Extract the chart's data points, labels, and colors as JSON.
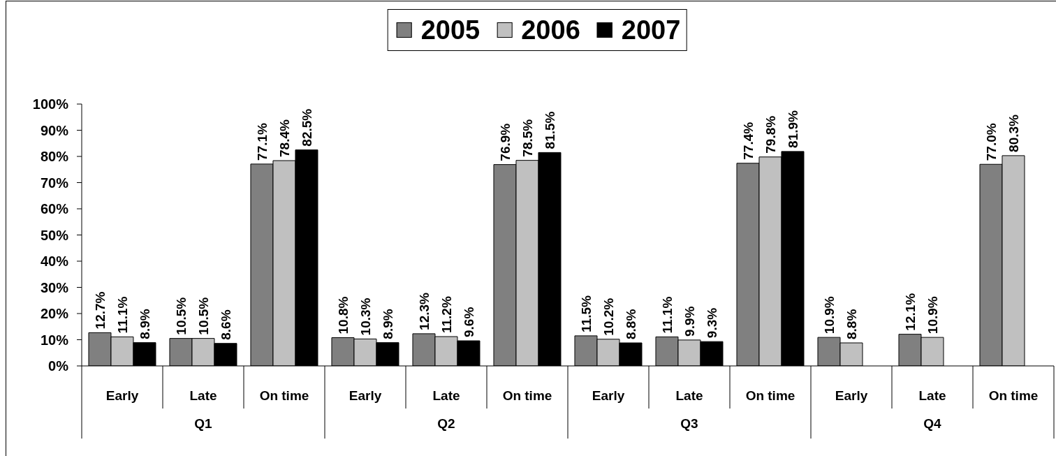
{
  "chart_data": {
    "type": "bar",
    "categories": [
      "Early",
      "Late",
      "On time",
      "Early",
      "Late",
      "On time",
      "Early",
      "Late",
      "On time",
      "Early",
      "Late",
      "On time"
    ],
    "series": [
      {
        "name": "2005",
        "color": "#808080",
        "values": [
          12.7,
          10.5,
          77.1,
          10.8,
          12.3,
          76.9,
          11.5,
          11.1,
          77.4,
          10.9,
          12.1,
          77.0
        ],
        "value_labels": [
          "12.7%",
          "10.5%",
          "77.1%",
          "10.8%",
          "12.3%",
          "76.9%",
          "11.5%",
          "11.1%",
          "77.4%",
          "10.9%",
          "12.1%",
          "77.0%"
        ]
      },
      {
        "name": "2006",
        "color": "#c0c0c0",
        "values": [
          11.1,
          10.5,
          78.4,
          10.3,
          11.2,
          78.5,
          10.2,
          9.9,
          79.8,
          8.8,
          10.9,
          80.3
        ],
        "value_labels": [
          "11.1%",
          "10.5%",
          "78.4%",
          "10.3%",
          "11.2%",
          "78.5%",
          "10.2%",
          "9.9%",
          "79.8%",
          "8.8%",
          "10.9%",
          "80.3%"
        ]
      },
      {
        "name": "2007",
        "color": "#000000",
        "values": [
          8.9,
          8.6,
          82.5,
          8.9,
          9.6,
          81.5,
          8.8,
          9.3,
          81.9,
          null,
          null,
          null
        ],
        "value_labels": [
          "8.9%",
          "8.6%",
          "82.5%",
          "8.9%",
          "9.6%",
          "81.5%",
          "8.8%",
          "9.3%",
          "81.9%",
          null,
          null,
          null
        ]
      }
    ],
    "ylim": [
      0,
      100
    ],
    "yticks": [
      {
        "value": 0,
        "label": "0%"
      },
      {
        "value": 10,
        "label": "10%"
      },
      {
        "value": 20,
        "label": "20%"
      },
      {
        "value": 30,
        "label": "30%"
      },
      {
        "value": 40,
        "label": "40%"
      },
      {
        "value": 50,
        "label": "50%"
      },
      {
        "value": 60,
        "label": "60%"
      },
      {
        "value": 70,
        "label": "70%"
      },
      {
        "value": 80,
        "label": "80%"
      },
      {
        "value": 90,
        "label": "90%"
      },
      {
        "value": 100,
        "label": "100%"
      }
    ],
    "legend": "top",
    "annotations": [
      "Q1",
      "Q2",
      "Q3",
      "Q4"
    ]
  }
}
